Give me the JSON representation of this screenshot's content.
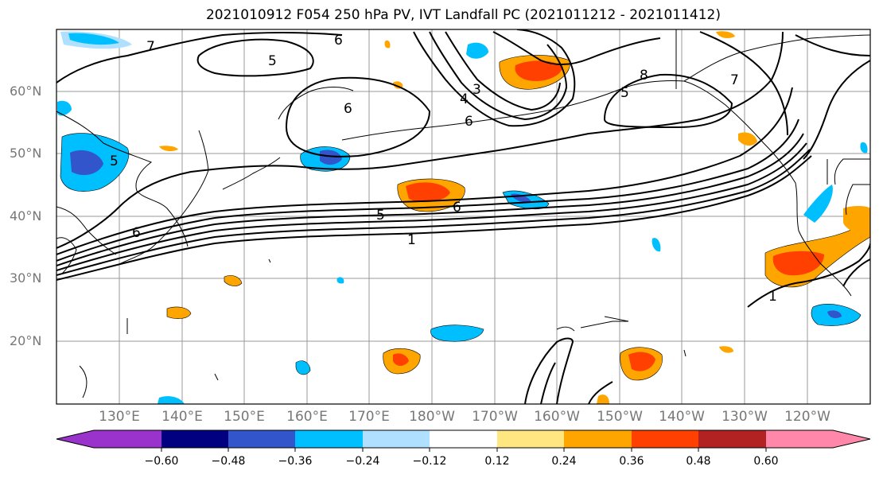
{
  "title": "2021010912 F054 250 hPa PV, IVT Landfall PC (2021011212 - 2021011412)",
  "lat_labels": [
    "60°N",
    "50°N",
    "40°N",
    "30°N",
    "20°N"
  ],
  "lon_labels": [
    "130°E",
    "140°E",
    "150°E",
    "160°E",
    "170°E",
    "180°W",
    "170°W",
    "160°W",
    "150°W",
    "140°W",
    "130°W",
    "120°W"
  ],
  "colorbar": {
    "colors": [
      "#9933cc",
      "#000080",
      "#3355cc",
      "#00bfff",
      "#b0e0ff",
      "#ffffff",
      "#ffe680",
      "#ffa500",
      "#ff4000",
      "#b22222",
      "#ff88aa"
    ],
    "labels": [
      "−0.60",
      "−0.48",
      "−0.36",
      "−0.24",
      "−0.12",
      "0.12",
      "0.24",
      "0.36",
      "0.48",
      "0.60"
    ]
  },
  "contour_labels": {
    "c1": "1",
    "c5a": "5",
    "c6a": "6",
    "c6b": "6",
    "c6c": "6",
    "c5b": "5",
    "c8": "8",
    "c6d": "6",
    "c5c": "5",
    "c5d": "5",
    "c4": "4",
    "c3": "3",
    "c7": "7",
    "c1b": "1",
    "c6e": "6",
    "c7b": "7"
  }
}
